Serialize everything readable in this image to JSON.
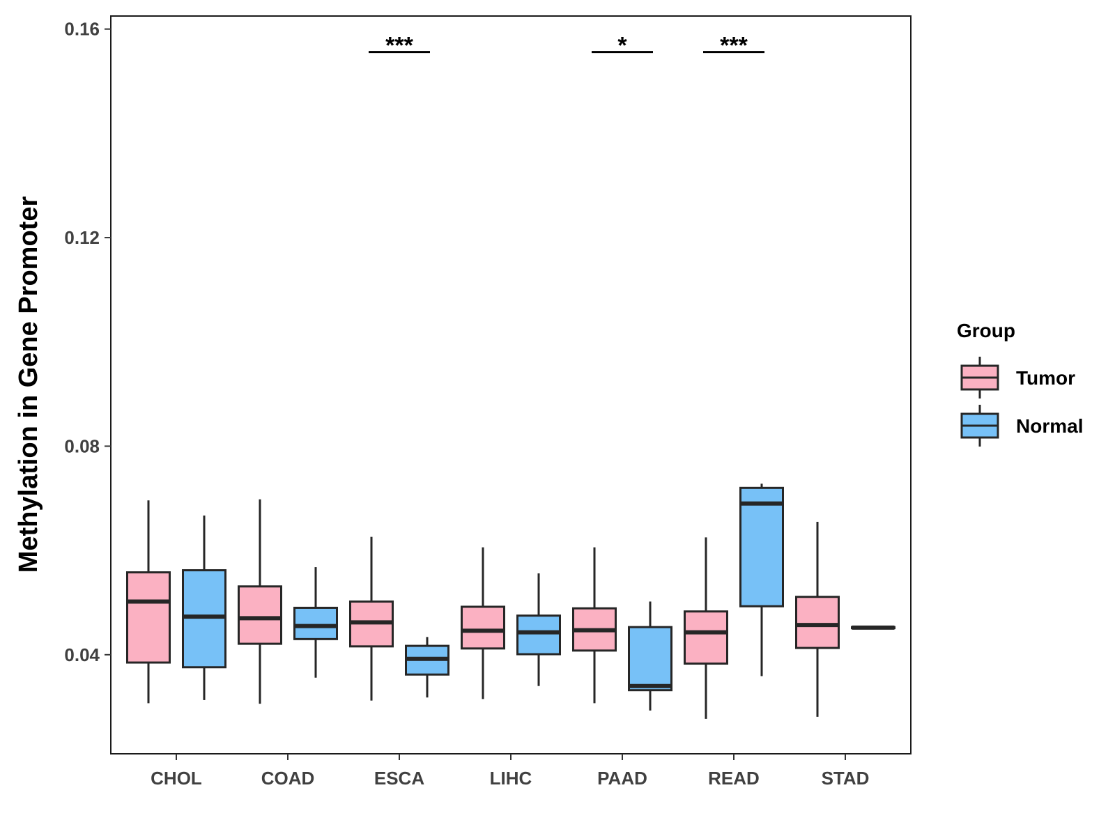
{
  "chart_data": {
    "type": "boxplot",
    "title": "",
    "xlabel": "",
    "ylabel": "Methylation in Gene Promoter",
    "ylim": [
      0.021,
      0.1625
    ],
    "yticks": [
      0.04,
      0.08,
      0.12,
      0.16
    ],
    "ytick_labels": [
      "0.04",
      "0.08",
      "0.12",
      "0.16"
    ],
    "categories": [
      "CHOL",
      "COAD",
      "ESCA",
      "LIHC",
      "PAAD",
      "READ",
      "STAD"
    ],
    "legend": {
      "title": "Group",
      "position": "right",
      "entries": [
        {
          "name": "Tumor",
          "color": "#FBB1C2"
        },
        {
          "name": "Normal",
          "color": "#77C1F7"
        }
      ]
    },
    "series": [
      {
        "name": "Tumor",
        "color": "#FBB1C2",
        "boxes": [
          {
            "category": "CHOL",
            "whisker_low": 0.0307,
            "q1": 0.0385,
            "median": 0.0502,
            "q3": 0.0558,
            "whisker_high": 0.0696
          },
          {
            "category": "COAD",
            "whisker_low": 0.0306,
            "q1": 0.0421,
            "median": 0.047,
            "q3": 0.0531,
            "whisker_high": 0.0698
          },
          {
            "category": "ESCA",
            "whisker_low": 0.0312,
            "q1": 0.0416,
            "median": 0.0462,
            "q3": 0.0502,
            "whisker_high": 0.0626
          },
          {
            "category": "LIHC",
            "whisker_low": 0.0315,
            "q1": 0.0412,
            "median": 0.0446,
            "q3": 0.0492,
            "whisker_high": 0.0606
          },
          {
            "category": "PAAD",
            "whisker_low": 0.0307,
            "q1": 0.0408,
            "median": 0.0447,
            "q3": 0.0489,
            "whisker_high": 0.0606
          },
          {
            "category": "READ",
            "whisker_low": 0.0277,
            "q1": 0.0383,
            "median": 0.0443,
            "q3": 0.0483,
            "whisker_high": 0.0625
          },
          {
            "category": "STAD",
            "whisker_low": 0.0281,
            "q1": 0.0413,
            "median": 0.0457,
            "q3": 0.0511,
            "whisker_high": 0.0655
          }
        ]
      },
      {
        "name": "Normal",
        "color": "#77C1F7",
        "boxes": [
          {
            "category": "CHOL",
            "whisker_low": 0.0313,
            "q1": 0.0376,
            "median": 0.0473,
            "q3": 0.0562,
            "whisker_high": 0.0667
          },
          {
            "category": "COAD",
            "whisker_low": 0.0356,
            "q1": 0.043,
            "median": 0.0455,
            "q3": 0.049,
            "whisker_high": 0.0568
          },
          {
            "category": "ESCA",
            "whisker_low": 0.0318,
            "q1": 0.0362,
            "median": 0.0392,
            "q3": 0.0417,
            "whisker_high": 0.0434
          },
          {
            "category": "LIHC",
            "whisker_low": 0.034,
            "q1": 0.0401,
            "median": 0.0443,
            "q3": 0.0475,
            "whisker_high": 0.0556
          },
          {
            "category": "PAAD",
            "whisker_low": 0.0293,
            "q1": 0.0332,
            "median": 0.034,
            "q3": 0.0453,
            "whisker_high": 0.0502
          },
          {
            "category": "READ",
            "whisker_low": 0.0359,
            "q1": 0.0493,
            "median": 0.069,
            "q3": 0.072,
            "whisker_high": 0.0728
          },
          {
            "category": "STAD",
            "whisker_low": 0.0451,
            "q1": 0.0451,
            "median": 0.0452,
            "q3": 0.0453,
            "whisker_high": 0.0454
          }
        ]
      }
    ],
    "annotations": [
      {
        "category": "ESCA",
        "text": "***",
        "y": 0.1556
      },
      {
        "category": "PAAD",
        "text": "*",
        "y": 0.1556
      },
      {
        "category": "READ",
        "text": "***",
        "y": 0.1556
      }
    ]
  }
}
